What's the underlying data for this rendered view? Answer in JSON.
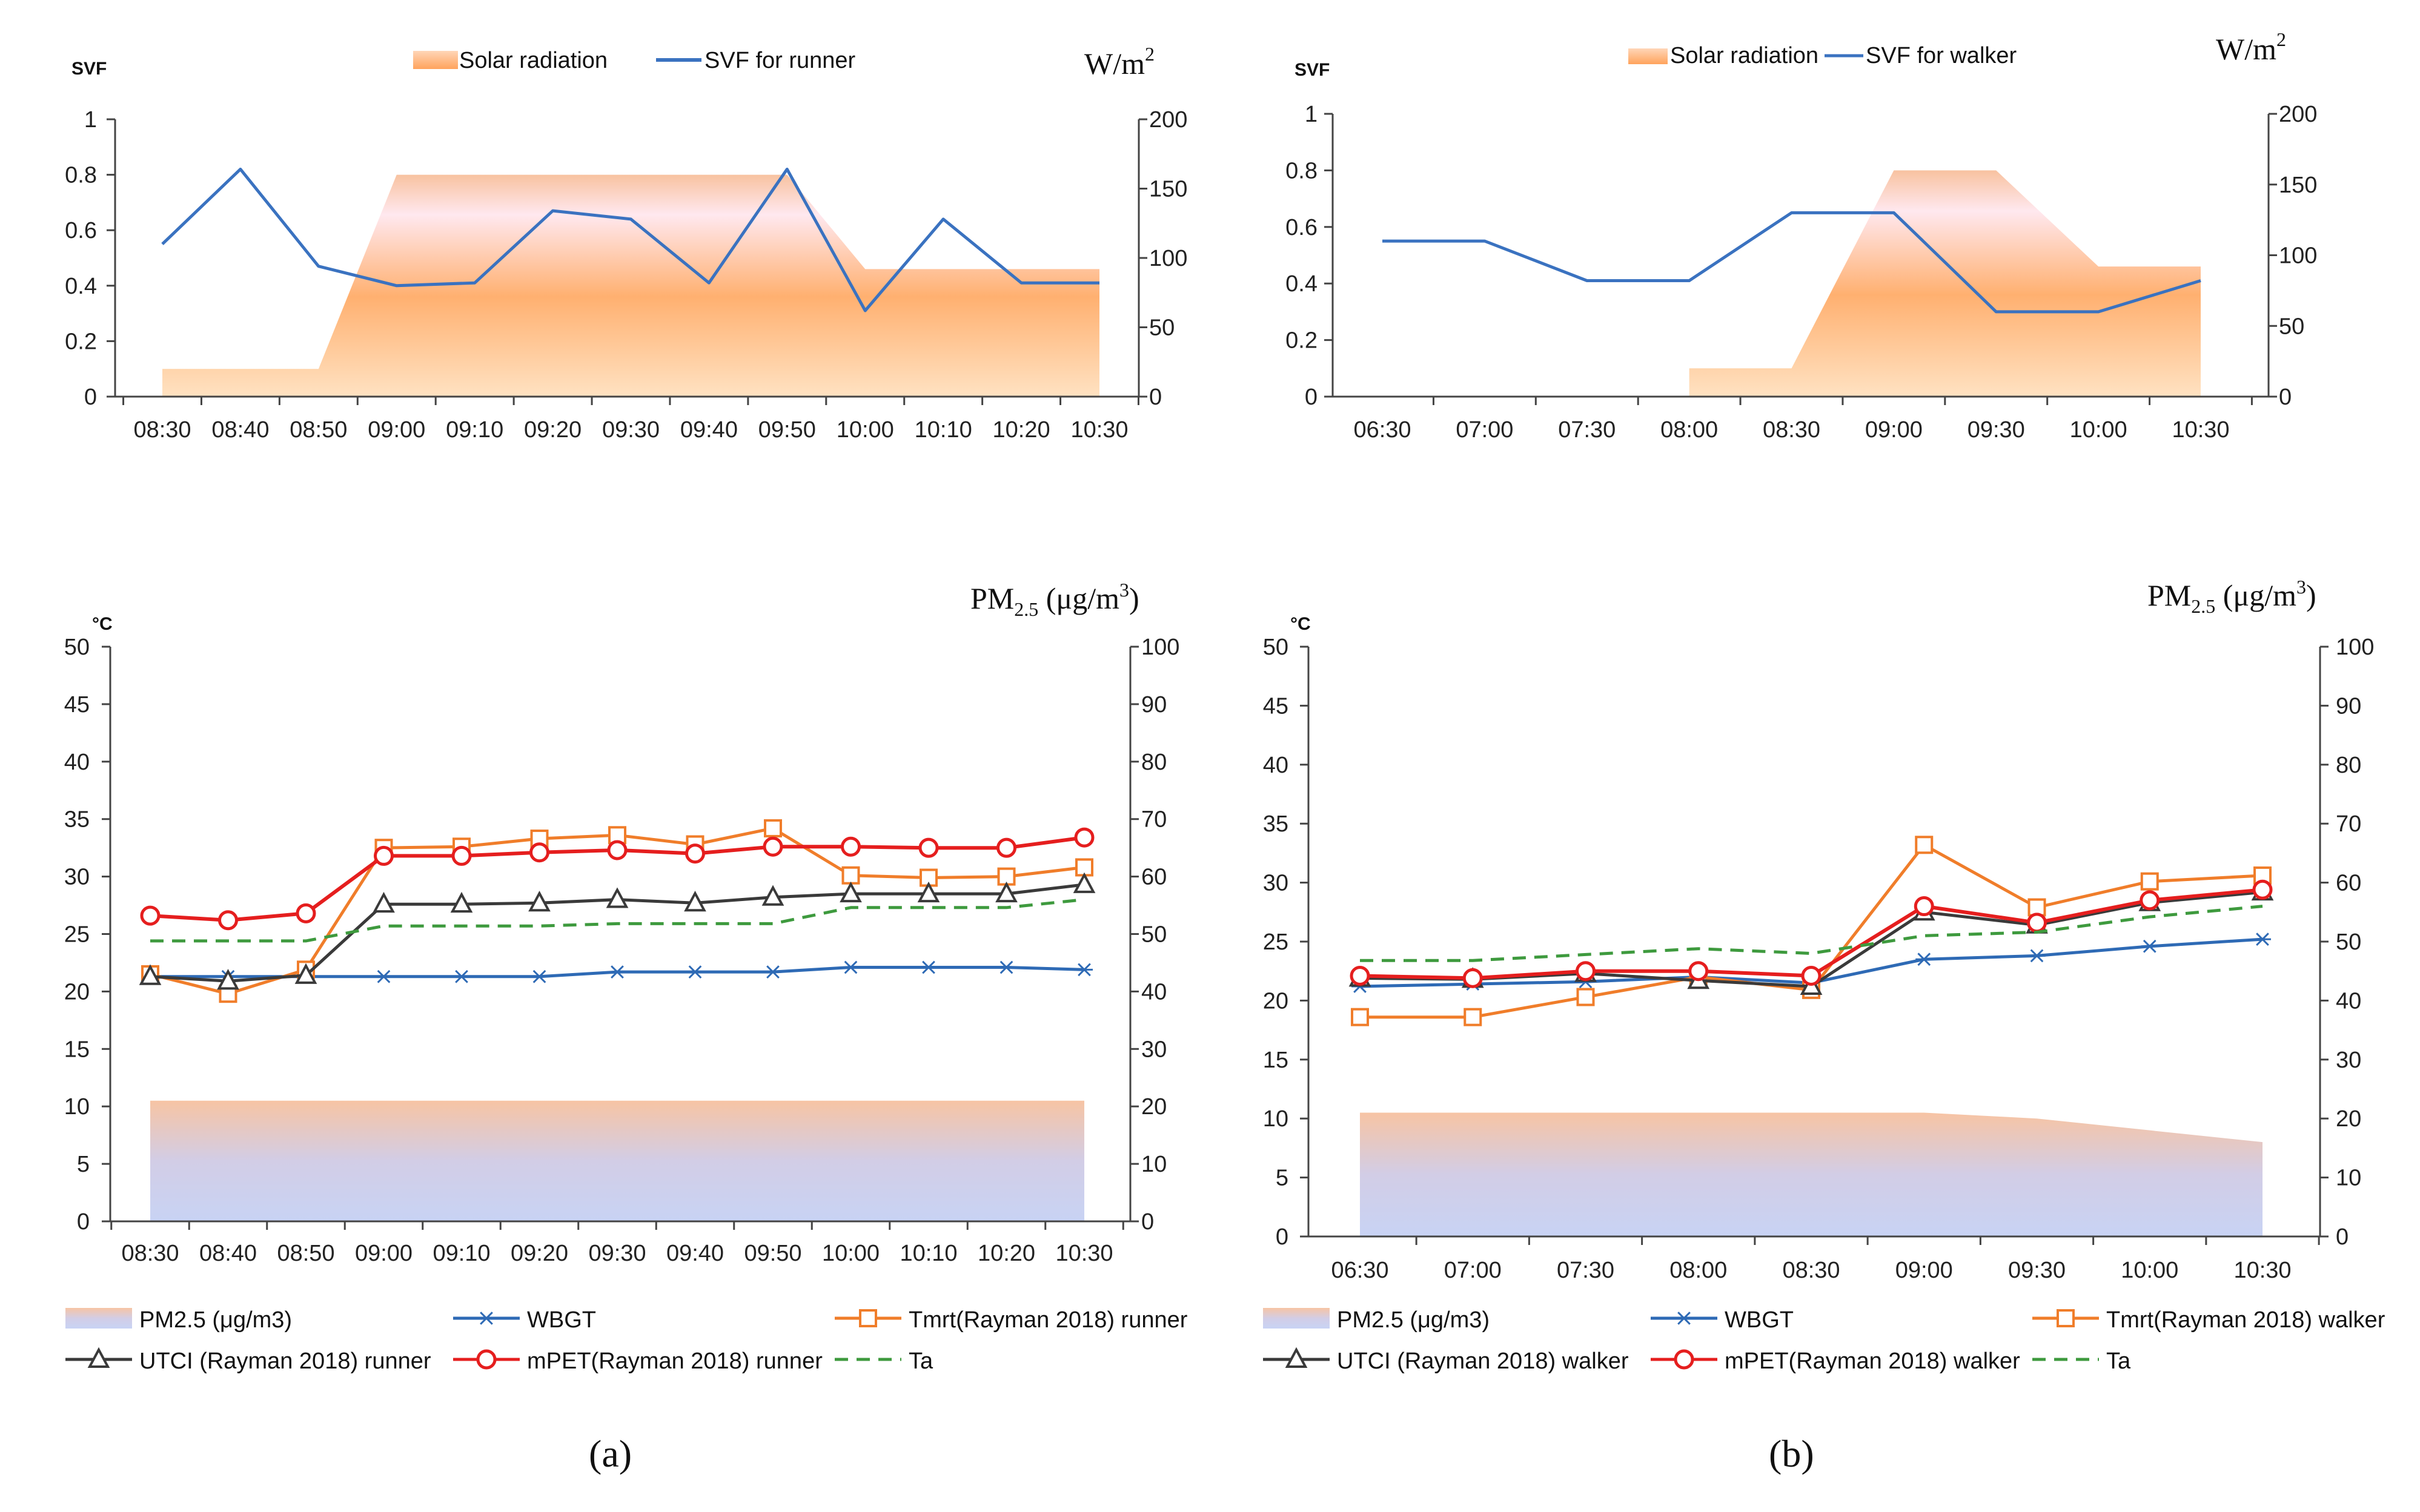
{
  "colors": {
    "solar_top": "#f8c2a0",
    "solar_mid": "#ffe8ef",
    "solar_bottom": "#ffb070",
    "pm_top": "#f7c4a4",
    "pm_bottom": "#c8d3f4",
    "svf": "#3a72c0",
    "wbgt": "#2e6ab5",
    "tmrt": "#f07d2a",
    "utci": "#3a3a3a",
    "mpet": "#e51e1e",
    "ta": "#3e9a3e",
    "axis": "#444444"
  },
  "panels": {
    "a": {
      "label": "(a)"
    },
    "b": {
      "label": "(b)"
    }
  },
  "chart_data": [
    {
      "id": "a-top",
      "type": "area+line",
      "title": "",
      "y_left_label": "SVF",
      "y_right_label_main": "W/m",
      "y_right_label_sup": "2",
      "ylim_left": [
        0,
        1
      ],
      "ylim_right": [
        0,
        200
      ],
      "left_ticks": [
        "0",
        "0.2",
        "0.4",
        "0.6",
        "0.8",
        "1"
      ],
      "right_ticks": [
        "0",
        "50",
        "100",
        "150",
        "200"
      ],
      "categories": [
        "08:30",
        "08:40",
        "08:50",
        "09:00",
        "09:10",
        "09:20",
        "09:30",
        "09:40",
        "09:50",
        "10:00",
        "10:10",
        "10:20",
        "10:30"
      ],
      "legend": [
        "Solar radiation",
        "SVF for runner"
      ],
      "series": [
        {
          "name": "Solar radiation",
          "axis": "right",
          "kind": "area",
          "points": [
            [
              0,
              20
            ],
            [
              2,
              20
            ],
            [
              3,
              160
            ],
            [
              8,
              160
            ],
            [
              9,
              92
            ],
            [
              12,
              92
            ]
          ]
        },
        {
          "name": "SVF for runner",
          "axis": "left",
          "kind": "line",
          "values": [
            0.55,
            0.82,
            0.47,
            0.4,
            0.41,
            0.67,
            0.64,
            0.41,
            0.82,
            0.31,
            0.64,
            0.41,
            0.41
          ]
        }
      ]
    },
    {
      "id": "b-top",
      "type": "area+line",
      "title": "",
      "y_left_label": "SVF",
      "y_right_label_main": "W/m",
      "y_right_label_sup": "2",
      "ylim_left": [
        0,
        1
      ],
      "ylim_right": [
        0,
        200
      ],
      "left_ticks": [
        "0",
        "0.2",
        "0.4",
        "0.6",
        "0.8",
        "1"
      ],
      "right_ticks": [
        "0",
        "50",
        "100",
        "150",
        "200"
      ],
      "categories": [
        "06:30",
        "07:00",
        "07:30",
        "08:00",
        "08:30",
        "09:00",
        "09:30",
        "10:00",
        "10:30"
      ],
      "legend": [
        "Solar radiation",
        "SVF for walker"
      ],
      "series": [
        {
          "name": "Solar radiation",
          "axis": "right",
          "kind": "area",
          "points": [
            [
              3,
              20
            ],
            [
              4,
              20
            ],
            [
              5,
              160
            ],
            [
              6,
              160
            ],
            [
              7,
              92
            ],
            [
              8,
              92
            ]
          ]
        },
        {
          "name": "SVF for walker",
          "axis": "left",
          "kind": "line",
          "values": [
            0.55,
            0.55,
            0.41,
            0.41,
            0.65,
            0.65,
            0.3,
            0.3,
            0.41
          ]
        }
      ]
    },
    {
      "id": "a-bottom",
      "type": "area+line",
      "title": "",
      "y_left_label": "°C",
      "y_right_label_main": "PM",
      "y_right_label_sub": "2.5",
      "y_right_label_rest": " (μg/m",
      "y_right_label_sup": "3",
      "y_right_label_end": ")",
      "ylim_left": [
        0,
        50
      ],
      "ylim_right": [
        0,
        100
      ],
      "left_ticks": [
        "0",
        "5",
        "10",
        "15",
        "20",
        "25",
        "30",
        "35",
        "40",
        "45",
        "50"
      ],
      "right_ticks": [
        "0",
        "10",
        "20",
        "30",
        "40",
        "50",
        "60",
        "70",
        "80",
        "90",
        "100"
      ],
      "categories": [
        "08:30",
        "08:40",
        "08:50",
        "09:00",
        "09:10",
        "09:20",
        "09:30",
        "09:40",
        "09:50",
        "10:00",
        "10:10",
        "10:20",
        "10:30"
      ],
      "legend": [
        "PM2.5 (μg/m3)",
        "WBGT",
        "Tmrt(Rayman 2018) runner",
        "UTCI (Rayman 2018) runner",
        "mPET(Rayman 2018) runner",
        "Ta"
      ],
      "series": [
        {
          "name": "PM2.5 (μg/m3)",
          "axis": "right",
          "kind": "area",
          "values": [
            21,
            21,
            21,
            21,
            21,
            21,
            21,
            21,
            21,
            21,
            21,
            21,
            21
          ]
        },
        {
          "name": "WBGT",
          "axis": "left",
          "kind": "line",
          "marker": "star",
          "values": [
            21.3,
            21.3,
            21.3,
            21.3,
            21.3,
            21.3,
            21.7,
            21.7,
            21.7,
            22.1,
            22.1,
            22.1,
            21.9
          ]
        },
        {
          "name": "Tmrt(Rayman 2018) runner",
          "axis": "left",
          "kind": "line",
          "marker": "square",
          "values": [
            21.5,
            19.8,
            21.9,
            32.5,
            32.6,
            33.3,
            33.6,
            32.8,
            34.2,
            30.1,
            29.9,
            30.0,
            30.8
          ]
        },
        {
          "name": "UTCI (Rayman 2018) runner",
          "axis": "left",
          "kind": "line",
          "marker": "triangle",
          "values": [
            21.3,
            20.9,
            21.4,
            27.6,
            27.6,
            27.7,
            28.0,
            27.7,
            28.2,
            28.5,
            28.5,
            28.5,
            29.3
          ]
        },
        {
          "name": "mPET(Rayman 2018) runner",
          "axis": "left",
          "kind": "line",
          "marker": "circle",
          "values": [
            26.6,
            26.2,
            26.8,
            31.8,
            31.8,
            32.1,
            32.3,
            32.0,
            32.6,
            32.6,
            32.5,
            32.5,
            33.4
          ]
        },
        {
          "name": "Ta",
          "axis": "left",
          "kind": "dashed",
          "values": [
            24.4,
            24.4,
            24.4,
            25.7,
            25.7,
            25.7,
            25.9,
            25.9,
            25.9,
            27.3,
            27.3,
            27.3,
            28.0
          ]
        }
      ]
    },
    {
      "id": "b-bottom",
      "type": "area+line",
      "title": "",
      "y_left_label": "°C",
      "y_right_label_main": "PM",
      "y_right_label_sub": "2.5",
      "y_right_label_rest": " (μg/m",
      "y_right_label_sup": "3",
      "y_right_label_end": ")",
      "ylim_left": [
        0,
        50
      ],
      "ylim_right": [
        0,
        100
      ],
      "left_ticks": [
        "0",
        "5",
        "10",
        "15",
        "20",
        "25",
        "30",
        "35",
        "40",
        "45",
        "50"
      ],
      "right_ticks": [
        "0",
        "10",
        "20",
        "30",
        "40",
        "50",
        "60",
        "70",
        "80",
        "90",
        "100"
      ],
      "categories": [
        "06:30",
        "07:00",
        "07:30",
        "08:00",
        "08:30",
        "09:00",
        "09:30",
        "10:00",
        "10:30"
      ],
      "legend": [
        "PM2.5 (μg/m3)",
        "WBGT",
        "Tmrt(Rayman 2018) walker",
        "UTCI (Rayman 2018) walker",
        "mPET(Rayman 2018) walker",
        "Ta"
      ],
      "series": [
        {
          "name": "PM2.5 (μg/m3)",
          "axis": "right",
          "kind": "area",
          "values": [
            21,
            21,
            21,
            21,
            21,
            21,
            20,
            18,
            16
          ]
        },
        {
          "name": "WBGT",
          "axis": "left",
          "kind": "line",
          "marker": "star",
          "values": [
            21.2,
            21.4,
            21.6,
            22.0,
            21.5,
            23.5,
            23.8,
            24.6,
            25.2
          ]
        },
        {
          "name": "Tmrt(Rayman 2018) walker",
          "axis": "left",
          "kind": "line",
          "marker": "square",
          "values": [
            18.6,
            18.6,
            20.3,
            22.0,
            20.9,
            33.2,
            27.9,
            30.1,
            30.6
          ]
        },
        {
          "name": "UTCI (Rayman 2018) walker",
          "axis": "left",
          "kind": "line",
          "marker": "triangle",
          "values": [
            21.9,
            21.8,
            22.3,
            21.7,
            21.2,
            27.5,
            26.4,
            28.3,
            29.2
          ]
        },
        {
          "name": "mPET(Rayman 2018) walker",
          "axis": "left",
          "kind": "line",
          "marker": "circle",
          "values": [
            22.1,
            21.9,
            22.5,
            22.5,
            22.1,
            28.0,
            26.6,
            28.5,
            29.4
          ]
        },
        {
          "name": "Ta",
          "axis": "left",
          "kind": "dashed",
          "values": [
            23.4,
            23.4,
            23.9,
            24.4,
            24.0,
            25.5,
            25.8,
            27.1,
            28.0
          ]
        }
      ]
    }
  ]
}
